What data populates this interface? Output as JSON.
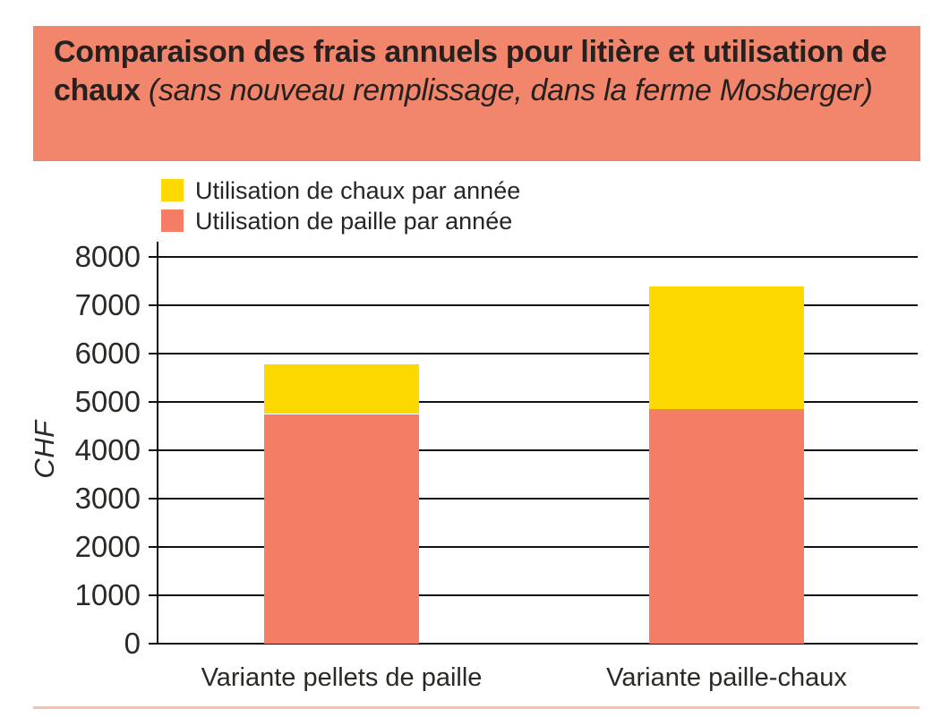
{
  "title": {
    "bold": "Comparaison des frais annuels pour litière et utilisation de chaux",
    "italic": "(sans nouveau remplissage, dans la ferme Mosberger)"
  },
  "colors": {
    "header_bg": "#F2866D",
    "salmon": "#F37D65",
    "yellow": "#FDD901",
    "grid": "#111111",
    "title_text": "#26211f",
    "axis_text": "#2b2926",
    "bottom_rule": "#F4C1AD"
  },
  "legend": [
    {
      "label": "Utilisation de chaux par année",
      "color": "#FDD901"
    },
    {
      "label": "Utilisation de paille par année",
      "color": "#F37D65"
    }
  ],
  "chart_data": {
    "type": "bar",
    "stacked": true,
    "title": "Comparaison des frais annuels pour litière et utilisation de chaux (sans nouveau remplissage, dans la ferme Mosberger)",
    "categories": [
      "Variante pellets de paille",
      "Variante paille-chaux"
    ],
    "series": [
      {
        "name": "Utilisation de paille par année",
        "color": "#F37D65",
        "values": [
          4750,
          4850
        ]
      },
      {
        "name": "Utilisation de chaux par année",
        "color": "#FDD901",
        "values": [
          1030,
          2530
        ]
      }
    ],
    "totals": [
      5780,
      7380
    ],
    "xlabel": "",
    "ylabel": "CHF",
    "ylim": [
      0,
      8000
    ],
    "yticks": [
      0,
      1000,
      2000,
      3000,
      4000,
      5000,
      6000,
      7000,
      8000
    ],
    "grid": true,
    "legend_position": "top-left"
  }
}
